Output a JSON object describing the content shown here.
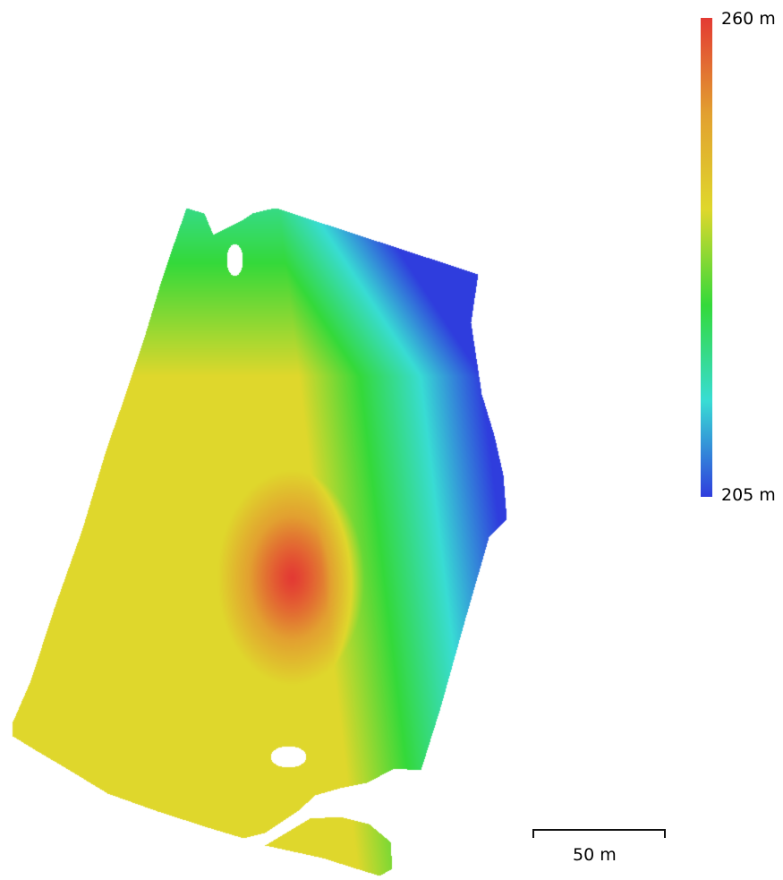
{
  "legend": {
    "max_label": "260 m",
    "min_label": "205 m",
    "colors": [
      "#e33a33",
      "#e2a030",
      "#dfd72c",
      "#34d93a",
      "#38dcd4",
      "#2f3ddd"
    ]
  },
  "scale_bar": {
    "label": "50 m"
  },
  "map": {
    "type": "elevation-heatmap",
    "peak_color": "#e33a33",
    "low_color": "#2f3ddd"
  }
}
